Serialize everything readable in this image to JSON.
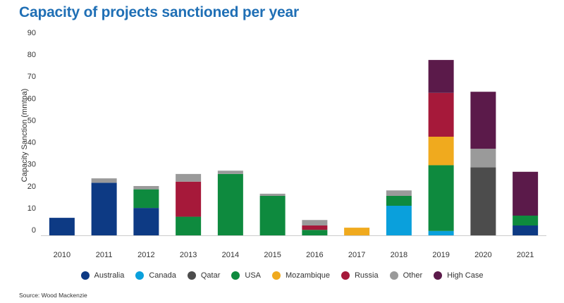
{
  "title": "Capacity of projects sanctioned per year",
  "source": "Source: Wood Mackenzie",
  "chart_data": {
    "type": "bar",
    "stacked": true,
    "title": "Capacity of projects sanctioned per year",
    "xlabel": "",
    "ylabel": "Capacity Sanction (mmtpa)",
    "ylim": [
      0,
      90
    ],
    "yticks": [
      0,
      10,
      20,
      30,
      40,
      50,
      60,
      70,
      80,
      90
    ],
    "grid": false,
    "legend_position": "bottom",
    "categories": [
      "2010",
      "2011",
      "2012",
      "2013",
      "2014",
      "2015",
      "2016",
      "2017",
      "2018",
      "2019",
      "2020",
      "2021"
    ],
    "series": [
      {
        "name": "Australia",
        "color": "#0d3a84",
        "values": [
          8,
          24,
          12.5,
          0,
          0,
          0,
          0,
          0,
          0,
          0,
          0,
          4.5
        ]
      },
      {
        "name": "Canada",
        "color": "#0aa0dc",
        "values": [
          0,
          0,
          0,
          0,
          0,
          0,
          0,
          0,
          13.5,
          2,
          0,
          0
        ]
      },
      {
        "name": "Qatar",
        "color": "#4c4c4c",
        "values": [
          0,
          0,
          0,
          0,
          0,
          0,
          0,
          0,
          0,
          0,
          31,
          0
        ]
      },
      {
        "name": "USA",
        "color": "#0e8a3e",
        "values": [
          0,
          0,
          8.5,
          8.5,
          28,
          18,
          2.5,
          0,
          4.5,
          30,
          0,
          4.5
        ]
      },
      {
        "name": "Mozambique",
        "color": "#f0aa1e",
        "values": [
          0,
          0,
          0,
          0,
          0,
          0,
          0,
          3.5,
          0,
          13,
          0,
          0
        ]
      },
      {
        "name": "Russia",
        "color": "#a6193a",
        "values": [
          0,
          0,
          0,
          16,
          0,
          0,
          2,
          0,
          0,
          20,
          0,
          0
        ]
      },
      {
        "name": "Other",
        "color": "#9a9a9a",
        "values": [
          0,
          2,
          1.5,
          3.5,
          1.5,
          1,
          2.5,
          0,
          2.5,
          0,
          8.5,
          0
        ]
      },
      {
        "name": "High Case",
        "color": "#5b1a4a",
        "values": [
          0,
          0,
          0,
          0,
          0,
          0,
          0,
          0,
          0,
          15,
          26,
          20
        ]
      }
    ]
  }
}
